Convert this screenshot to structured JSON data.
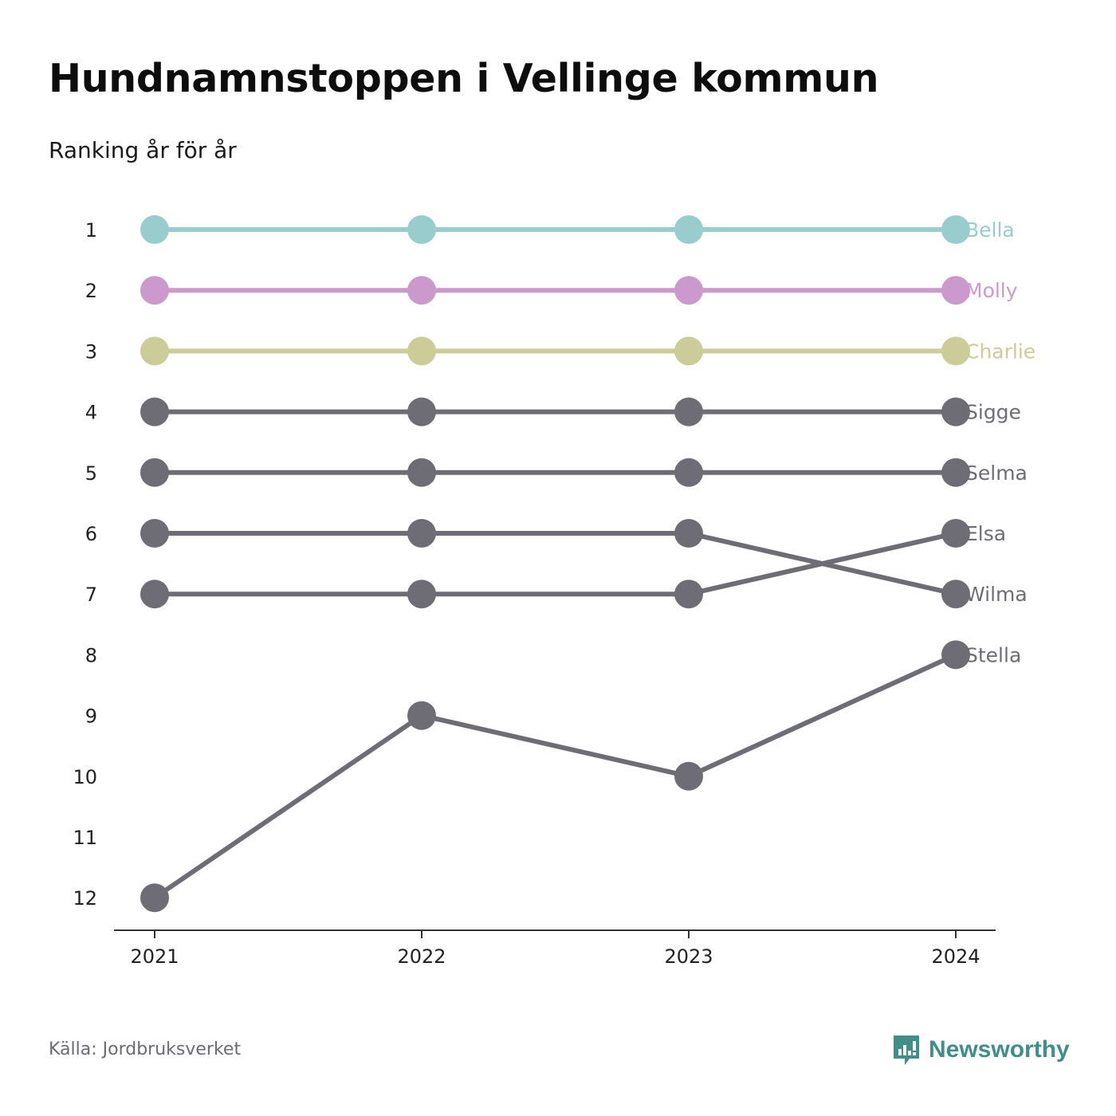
{
  "title": "Hundnamnstoppen i Vellinge kommun",
  "subtitle": "Ranking år för år",
  "source": "Källa: Jordbruksverket",
  "brand": {
    "name": "Newsworthy",
    "icon": "newsworthy-logo-icon",
    "color": "#3f8f88"
  },
  "chart_data": {
    "type": "line",
    "categories": [
      "2021",
      "2022",
      "2023",
      "2024"
    ],
    "y_ticks": [
      "1",
      "2",
      "3",
      "4",
      "5",
      "6",
      "7",
      "8",
      "9",
      "10",
      "11",
      "12"
    ],
    "ylim": [
      1,
      12
    ],
    "y_reversed": true,
    "grid": false,
    "series": [
      {
        "name": "Bella",
        "values": [
          1,
          1,
          1,
          1
        ],
        "color": "#99cccc"
      },
      {
        "name": "Molly",
        "values": [
          2,
          2,
          2,
          2
        ],
        "color": "#cc99cc"
      },
      {
        "name": "Charlie",
        "values": [
          3,
          3,
          3,
          3
        ],
        "color": "#cccc99"
      },
      {
        "name": "Sigge",
        "values": [
          4,
          4,
          4,
          4
        ],
        "color": "#6e6d75"
      },
      {
        "name": "Selma",
        "values": [
          5,
          5,
          5,
          5
        ],
        "color": "#6e6d75"
      },
      {
        "name": "Wilma",
        "values": [
          6,
          6,
          6,
          7
        ],
        "color": "#6e6d75"
      },
      {
        "name": "Elsa",
        "values": [
          7,
          7,
          7,
          6
        ],
        "color": "#6e6d75"
      },
      {
        "name": "Stella",
        "values": [
          12,
          9,
          10,
          8
        ],
        "color": "#6e6d75"
      }
    ]
  }
}
